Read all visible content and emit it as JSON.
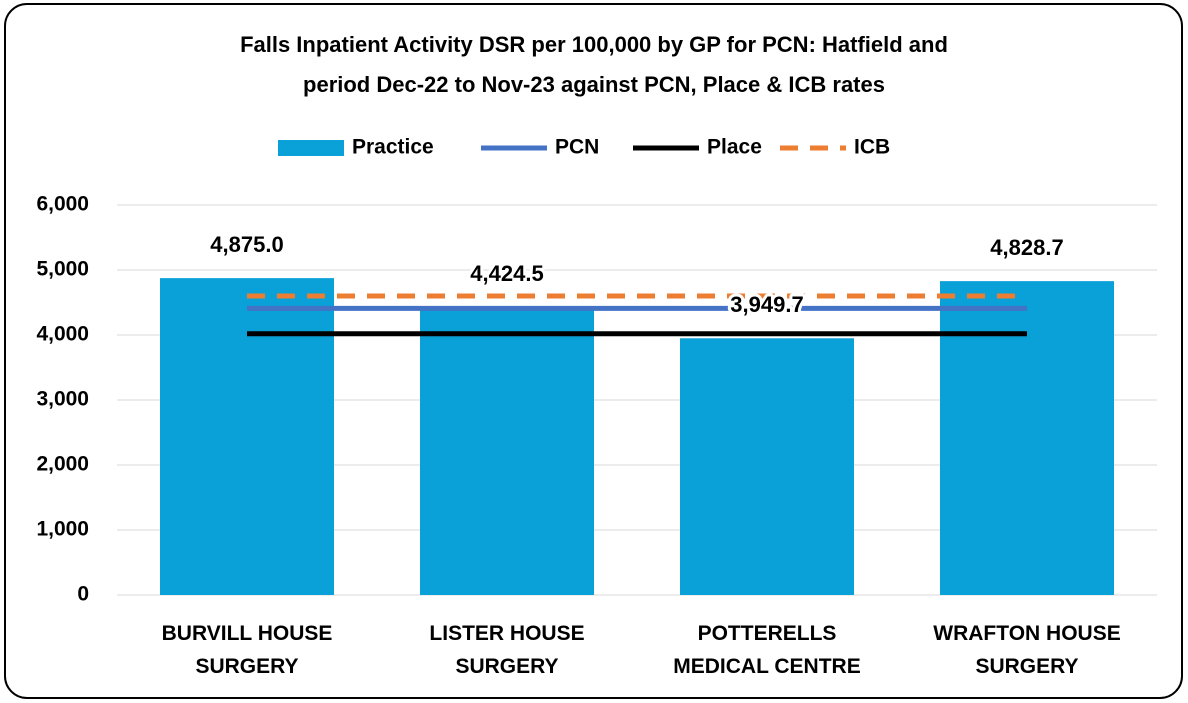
{
  "chart_data": {
    "type": "bar_line",
    "title": [
      "Falls Inpatient Activity DSR per 100,000 by GP for PCN: Hatfield and",
      "period Dec-22 to Nov-23 against PCN, Place & ICB rates"
    ],
    "categories": [
      "BURVILL HOUSE SURGERY",
      "LISTER HOUSE SURGERY",
      "POTTERELLS MEDICAL CENTRE",
      "WRAFTON HOUSE SURGERY"
    ],
    "series": [
      {
        "name": "Practice",
        "type": "bar",
        "color": "#0aa0d8",
        "values": [
          4875.0,
          4424.5,
          3949.7,
          4828.7
        ],
        "value_labels": [
          "4,875.0",
          "4,424.5",
          "3,949.7",
          "4,828.7"
        ]
      },
      {
        "name": "PCN",
        "type": "line",
        "color": "#4472c4",
        "style": "solid",
        "values": [
          4410,
          4410,
          4410,
          4410
        ]
      },
      {
        "name": "Place",
        "type": "line",
        "color": "#000000",
        "style": "solid",
        "values": [
          4020,
          4020,
          4020,
          4020
        ]
      },
      {
        "name": "ICB",
        "type": "line",
        "color": "#ed7d31",
        "style": "dashed",
        "values": [
          4600,
          4600,
          4600,
          4600
        ]
      }
    ],
    "ylim": [
      0,
      6000
    ],
    "yticks": [
      0,
      {
        "value": 1000,
        "label": "1,000"
      },
      {
        "value": 2000,
        "label": "2,000"
      },
      {
        "value": 3000,
        "label": "3,000"
      },
      {
        "value": 4000,
        "label": "4,000"
      },
      {
        "value": 5000,
        "label": "5,000"
      },
      {
        "value": 6000,
        "label": "6,000"
      }
    ],
    "grid": true
  }
}
